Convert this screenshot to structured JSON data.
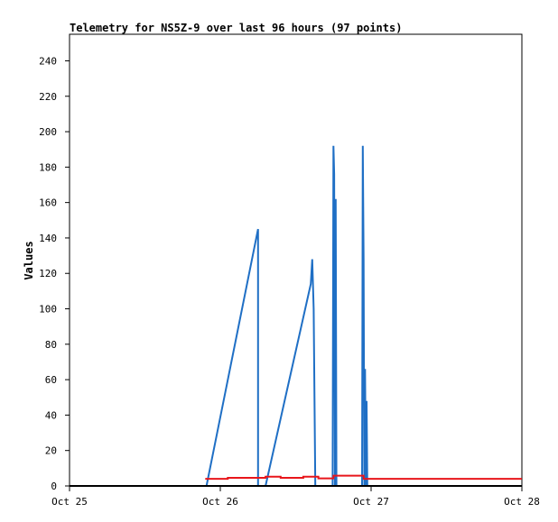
{
  "chart_data": {
    "type": "line",
    "title": "Telemetry for NS5Z-9 over last 96 hours (97 points)",
    "xlabel": "",
    "ylabel": "Values",
    "xlim": [
      "Oct 25",
      "Oct 28"
    ],
    "x_ticks": [
      "Oct 25",
      "Oct 26",
      "Oct 27",
      "Oct 28"
    ],
    "ylim": [
      0,
      255
    ],
    "y_ticks": [
      0,
      20,
      40,
      60,
      80,
      100,
      120,
      140,
      160,
      180,
      200,
      220,
      240
    ],
    "grid": false,
    "legend": "none",
    "series": [
      {
        "color": "#1f6fc5",
        "points": [
          [
            "Oct 25 21:48",
            0
          ],
          [
            "Oct 26 06:00",
            145
          ],
          [
            "Oct 26 06:00",
            0
          ],
          [
            "Oct 26 07:12",
            0
          ],
          [
            "Oct 26 14:24",
            114
          ],
          [
            "Oct 26 14:38",
            128
          ],
          [
            "Oct 26 14:52",
            100
          ],
          [
            "Oct 26 15:07",
            0
          ],
          [
            "Oct 26 17:53",
            0
          ],
          [
            "Oct 26 18:00",
            192
          ],
          [
            "Oct 26 18:07",
            176
          ],
          [
            "Oct 26 18:14",
            0
          ],
          [
            "Oct 26 18:22",
            162
          ],
          [
            "Oct 26 18:29",
            0
          ],
          [
            "Oct 26 22:34",
            0
          ],
          [
            "Oct 26 22:41",
            192
          ],
          [
            "Oct 26 22:48",
            128
          ],
          [
            "Oct 26 22:55",
            0
          ],
          [
            "Oct 26 23:02",
            66
          ],
          [
            "Oct 26 23:10",
            0
          ],
          [
            "Oct 26 23:17",
            48
          ],
          [
            "Oct 26 23:24",
            0
          ]
        ]
      },
      {
        "color": "#e8161b",
        "points": [
          [
            "Oct 25 21:36",
            4
          ],
          [
            "Oct 26 01:12",
            4
          ],
          [
            "Oct 26 01:12",
            4.6
          ],
          [
            "Oct 26 07:12",
            4.6
          ],
          [
            "Oct 26 07:12",
            5.2
          ],
          [
            "Oct 26 09:36",
            5.2
          ],
          [
            "Oct 26 09:36",
            4.6
          ],
          [
            "Oct 26 13:12",
            4.6
          ],
          [
            "Oct 26 13:12",
            5.2
          ],
          [
            "Oct 26 15:36",
            5.2
          ],
          [
            "Oct 26 15:36",
            4.3
          ],
          [
            "Oct 26 18:00",
            4.3
          ],
          [
            "Oct 26 18:00",
            5.8
          ],
          [
            "Oct 26 22:48",
            5.8
          ],
          [
            "Oct 26 22:48",
            4
          ],
          [
            "Oct 27 23:59",
            4
          ]
        ]
      },
      {
        "color": "#000000",
        "points": [
          [
            "Oct 25 00:00",
            0
          ],
          [
            "Oct 27 23:59",
            0
          ]
        ]
      }
    ]
  }
}
